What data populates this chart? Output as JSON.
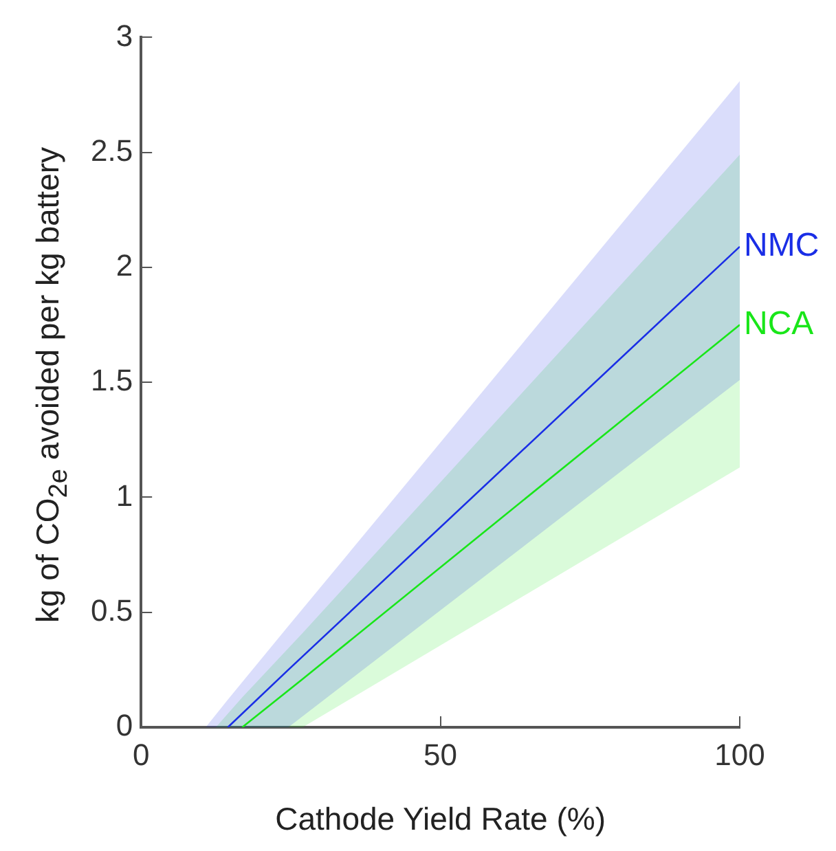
{
  "chart_data": {
    "type": "line",
    "xlabel": "Cathode Yield Rate (%)",
    "ylabel": "kg of CO$_{2e}$ avoided per kg battery",
    "series": [
      {
        "name": "NMC",
        "color": "#1a2ee6",
        "x": [
          10.8,
          14.5,
          24.6,
          100
        ],
        "values": [
          null,
          0,
          0.25,
          2.09
        ],
        "lower": [
          0,
          0,
          0,
          1.51
        ],
        "upper": [
          0,
          0.12,
          0.44,
          2.81
        ]
      },
      {
        "name": "NCA",
        "color": "#19e619",
        "x": [
          12.5,
          16.9,
          27,
          100
        ],
        "values": [
          null,
          0,
          0.21,
          1.75
        ],
        "lower": [
          0,
          0,
          0,
          1.13
        ],
        "upper": [
          0,
          0.13,
          0.41,
          2.49
        ]
      }
    ],
    "xlim": [
      0,
      100
    ],
    "xticks": [
      0,
      50,
      100
    ],
    "ylim": [
      0,
      3
    ],
    "yticks": [
      0,
      0.5,
      1,
      1.5,
      2,
      2.5,
      3
    ],
    "grid": false,
    "legend": false,
    "marker": "none",
    "line_style": "solid"
  }
}
